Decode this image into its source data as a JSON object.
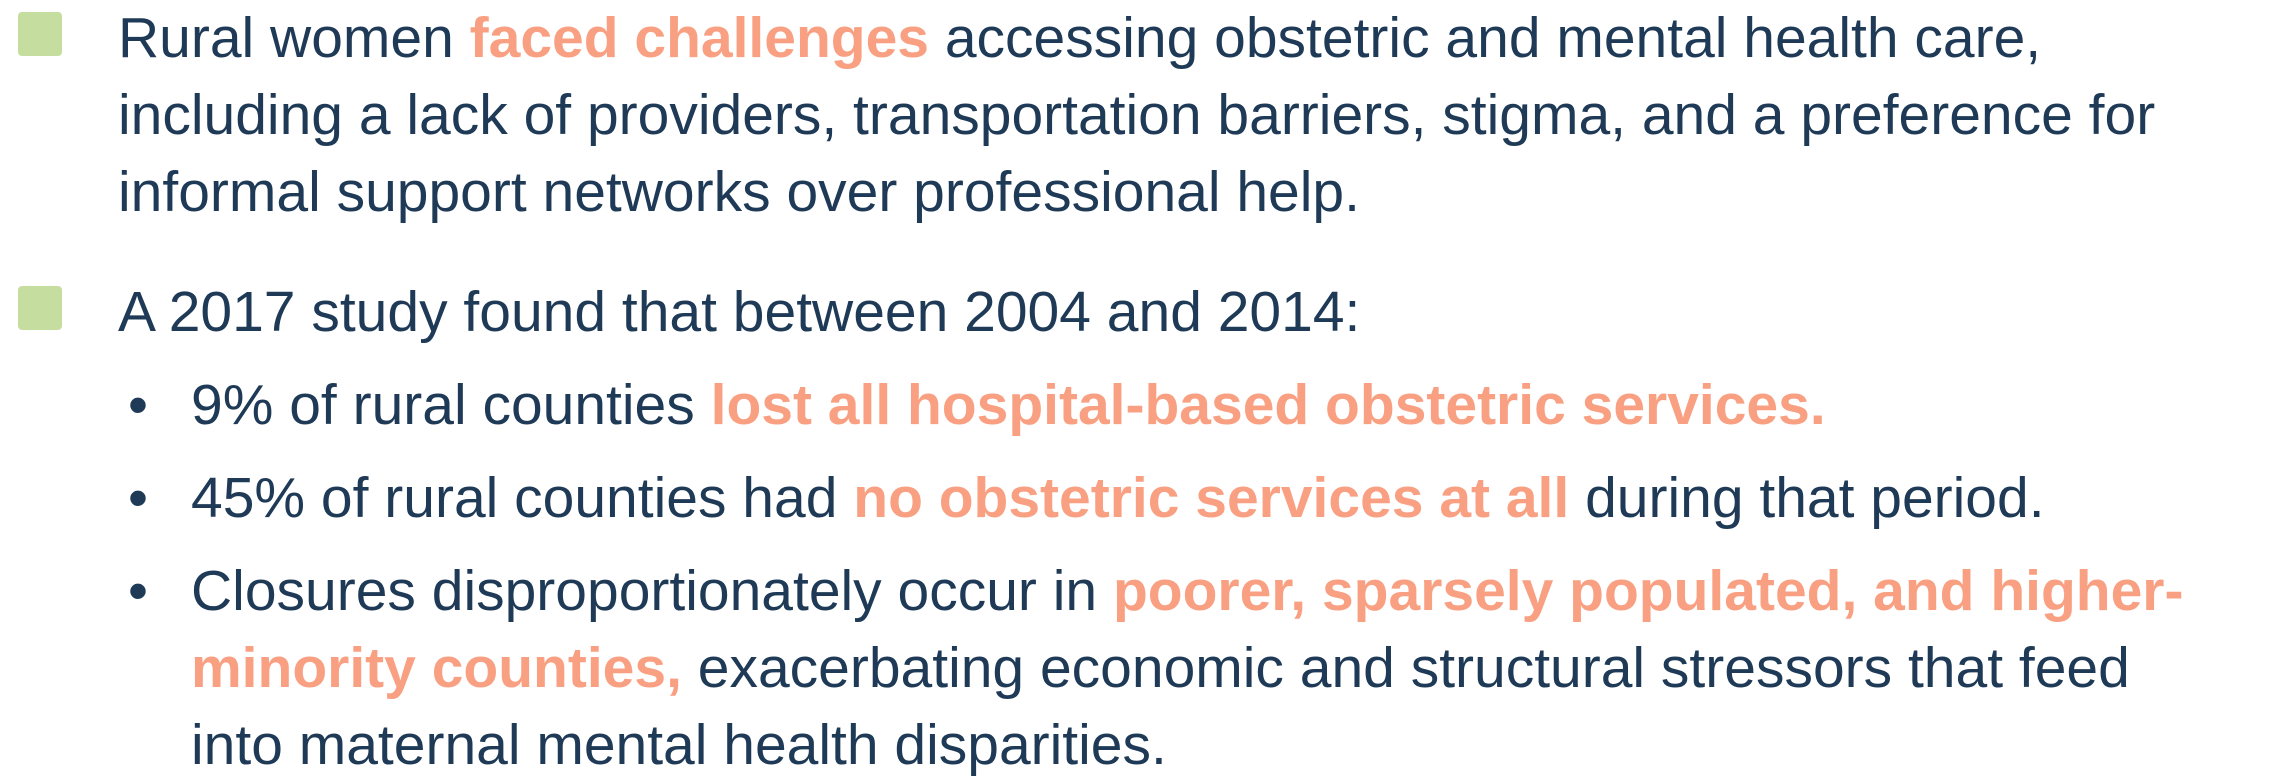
{
  "bullets": [
    {
      "parts": [
        {
          "text": "Rural women "
        },
        {
          "text": "faced challenges",
          "highlight": true
        },
        {
          "text": " accessing obstetric and mental health care, including a lack of providers, transportation barriers, stigma, and a preference for informal support networks over professional help."
        }
      ]
    },
    {
      "parts": [
        {
          "text": "A 2017 study found that between 2004 and 2014:"
        }
      ],
      "subitems": [
        {
          "parts": [
            {
              "text": "9% of rural counties "
            },
            {
              "text": "lost all hospital-based obstetric services.",
              "highlight": true
            }
          ]
        },
        {
          "parts": [
            {
              "text": "45% of rural counties had "
            },
            {
              "text": "no obstetric services at all",
              "highlight": true
            },
            {
              "text": " during that period."
            }
          ]
        },
        {
          "parts": [
            {
              "text": "Closures disproportionately occur in "
            },
            {
              "text": "poorer, sparsely populated, and higher-minority counties,",
              "highlight": true
            },
            {
              "text": " exacerbating economic and structural stressors that feed into maternal mental health disparities."
            }
          ]
        }
      ]
    }
  ]
}
